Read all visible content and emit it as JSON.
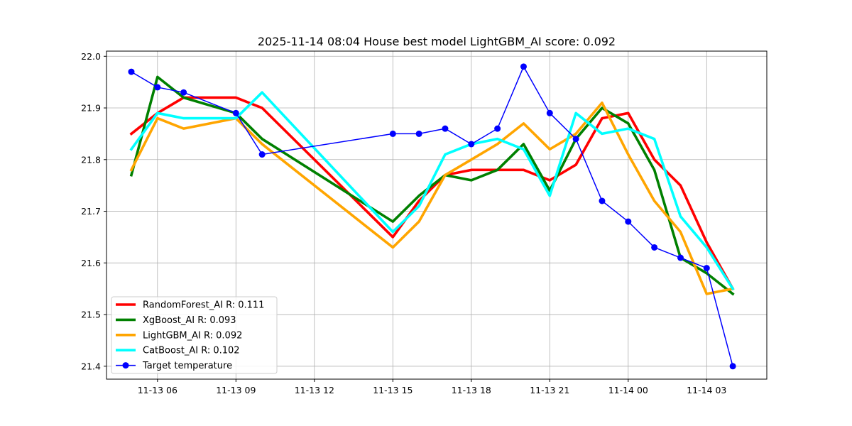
{
  "chart_data": {
    "type": "line",
    "title": "2025-11-14 08:04 House best model LightGBM_AI score: 0.092",
    "xlabel": "",
    "ylabel": "",
    "ylim": [
      21.375,
      22.01
    ],
    "xlim": [
      "2025-11-13 04:03",
      "2025-11-14 05:18"
    ],
    "grid": true,
    "legend_position": "lower-left",
    "x_ticks": [
      {
        "value": "2025-11-13 06:00",
        "label": "11-13 06"
      },
      {
        "value": "2025-11-13 09:00",
        "label": "11-13 09"
      },
      {
        "value": "2025-11-13 12:00",
        "label": "11-13 12"
      },
      {
        "value": "2025-11-13 15:00",
        "label": "11-13 15"
      },
      {
        "value": "2025-11-13 18:00",
        "label": "11-13 18"
      },
      {
        "value": "2025-11-13 21:00",
        "label": "11-13 21"
      },
      {
        "value": "2025-11-14 00:00",
        "label": "11-14 00"
      },
      {
        "value": "2025-11-14 03:00",
        "label": "11-14 03"
      }
    ],
    "y_ticks": [
      {
        "value": 21.4,
        "label": "21.4"
      },
      {
        "value": 21.5,
        "label": "21.5"
      },
      {
        "value": 21.6,
        "label": "21.6"
      },
      {
        "value": 21.7,
        "label": "21.7"
      },
      {
        "value": 21.8,
        "label": "21.8"
      },
      {
        "value": 21.9,
        "label": "21.9"
      },
      {
        "value": 22.0,
        "label": "22.0"
      }
    ],
    "x": [
      "2025-11-13 05:00",
      "2025-11-13 06:00",
      "2025-11-13 07:00",
      "2025-11-13 09:00",
      "2025-11-13 10:00",
      "2025-11-13 15:00",
      "2025-11-13 16:00",
      "2025-11-13 17:00",
      "2025-11-13 18:00",
      "2025-11-13 19:00",
      "2025-11-13 20:00",
      "2025-11-13 21:00",
      "2025-11-13 22:00",
      "2025-11-13 23:00",
      "2025-11-14 00:00",
      "2025-11-14 01:00",
      "2025-11-14 02:00",
      "2025-11-14 03:00",
      "2025-11-14 04:00"
    ],
    "series": [
      {
        "name": "RandomForest_AI R: 0.111",
        "color": "#ff0000",
        "style": "line",
        "values": [
          21.85,
          21.89,
          21.92,
          21.92,
          21.9,
          21.65,
          21.72,
          21.77,
          21.78,
          21.78,
          21.78,
          21.76,
          21.79,
          21.88,
          21.89,
          21.8,
          21.75,
          21.64,
          21.55
        ]
      },
      {
        "name": "XgBoost_AI R: 0.093",
        "color": "#008000",
        "style": "line",
        "values": [
          21.77,
          21.96,
          21.92,
          21.89,
          21.84,
          21.68,
          21.73,
          21.77,
          21.76,
          21.78,
          21.83,
          21.74,
          21.84,
          21.9,
          21.87,
          21.78,
          21.61,
          21.58,
          21.54
        ]
      },
      {
        "name": "LightGBM_AI R: 0.092",
        "color": "#ffa500",
        "style": "line",
        "values": [
          21.78,
          21.88,
          21.86,
          21.88,
          21.83,
          21.63,
          21.68,
          21.77,
          21.8,
          21.83,
          21.87,
          21.82,
          21.85,
          21.91,
          21.81,
          21.72,
          21.66,
          21.54,
          21.55
        ]
      },
      {
        "name": "CatBoost_AI R: 0.102",
        "color": "#00ffff",
        "style": "line",
        "values": [
          21.82,
          21.89,
          21.88,
          21.88,
          21.93,
          21.66,
          21.71,
          21.81,
          21.83,
          21.84,
          21.82,
          21.73,
          21.89,
          21.85,
          21.86,
          21.84,
          21.69,
          21.63,
          21.55
        ]
      },
      {
        "name": "Target temperature",
        "color": "#0000ff",
        "style": "line-marker",
        "points": [
          {
            "x": "2025-11-13 05:00",
            "y": 21.97
          },
          {
            "x": "2025-11-13 06:00",
            "y": 21.94
          },
          {
            "x": "2025-11-13 07:00",
            "y": 21.93
          },
          {
            "x": "2025-11-13 09:00",
            "y": 21.89
          },
          {
            "x": "2025-11-13 10:00",
            "y": 21.81
          },
          {
            "x": "2025-11-13 15:00",
            "y": 21.85
          },
          {
            "x": "2025-11-13 16:00",
            "y": 21.85
          },
          {
            "x": "2025-11-13 17:00",
            "y": 21.86
          },
          {
            "x": "2025-11-13 18:00",
            "y": 21.83
          },
          {
            "x": "2025-11-13 19:00",
            "y": 21.86
          },
          {
            "x": "2025-11-13 20:00",
            "y": 21.98
          },
          {
            "x": "2025-11-13 21:00",
            "y": 21.89
          },
          {
            "x": "2025-11-13 22:00",
            "y": 21.84
          },
          {
            "x": "2025-11-13 23:00",
            "y": 21.72
          },
          {
            "x": "2025-11-14 00:00",
            "y": 21.68
          },
          {
            "x": "2025-11-14 01:00",
            "y": 21.63
          },
          {
            "x": "2025-11-14 02:00",
            "y": 21.61
          },
          {
            "x": "2025-11-14 03:00",
            "y": 21.59
          },
          {
            "x": "2025-11-14 04:00",
            "y": 21.4
          }
        ]
      }
    ]
  }
}
